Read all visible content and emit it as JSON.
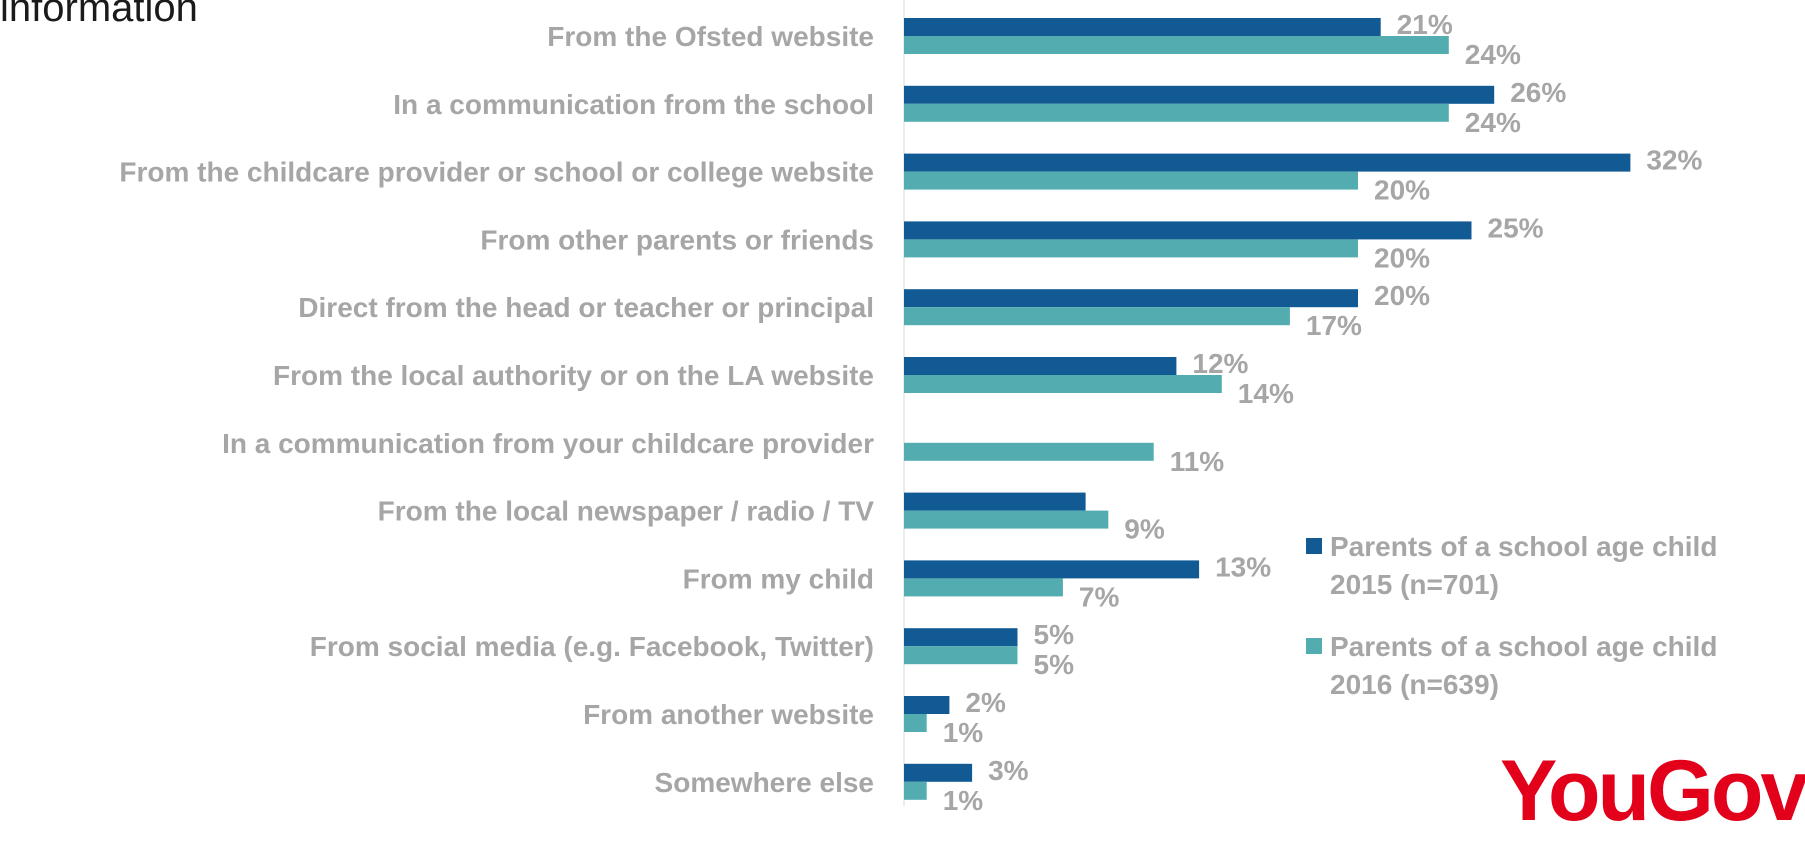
{
  "title": "information",
  "logo_text": "YouGov",
  "colors": {
    "series_2015": "#125a94",
    "series_2016": "#53adb0",
    "label": "#a6a6a6",
    "axis": "#d9d9d9",
    "logo": "#e2001a"
  },
  "chart_data": {
    "type": "bar",
    "orientation": "horizontal",
    "categories": [
      "From the Ofsted website",
      "In a communication from the school",
      "From the childcare provider or school or college website",
      "From  other parents or friends",
      "Direct from the head or teacher or principal",
      "From the local authority or on the LA website",
      "In a communication from your childcare provider",
      "From the local newspaper / radio / TV",
      "From my child",
      "From social media (e.g. Facebook, Twitter)",
      "From another website",
      "Somewhere else"
    ],
    "series": [
      {
        "name": "Parents of a school age child 2015 (n=701)",
        "values": [
          21,
          26,
          32,
          25,
          20,
          12,
          null,
          8,
          13,
          5,
          2,
          3
        ],
        "labels": [
          "21%",
          "26%",
          "32%",
          "25%",
          "20%",
          "12%",
          "",
          "",
          "13%",
          "5%",
          "2%",
          "3%"
        ]
      },
      {
        "name": "Parents of a school age child 2016 (n=639)",
        "values": [
          24,
          24,
          20,
          20,
          17,
          14,
          11,
          9,
          7,
          5,
          1,
          1
        ],
        "labels": [
          "24%",
          "24%",
          "20%",
          "20%",
          "17%",
          "14%",
          "11%",
          "9%",
          "7%",
          "5%",
          "1%",
          "1%"
        ]
      }
    ],
    "xlim": [
      0,
      35
    ],
    "legend_position": "right"
  },
  "legend": {
    "items": [
      {
        "text": "Parents of a school age child\n2015 (n=701)"
      },
      {
        "text": "Parents of a school age child\n2016 (n=639)"
      }
    ]
  }
}
